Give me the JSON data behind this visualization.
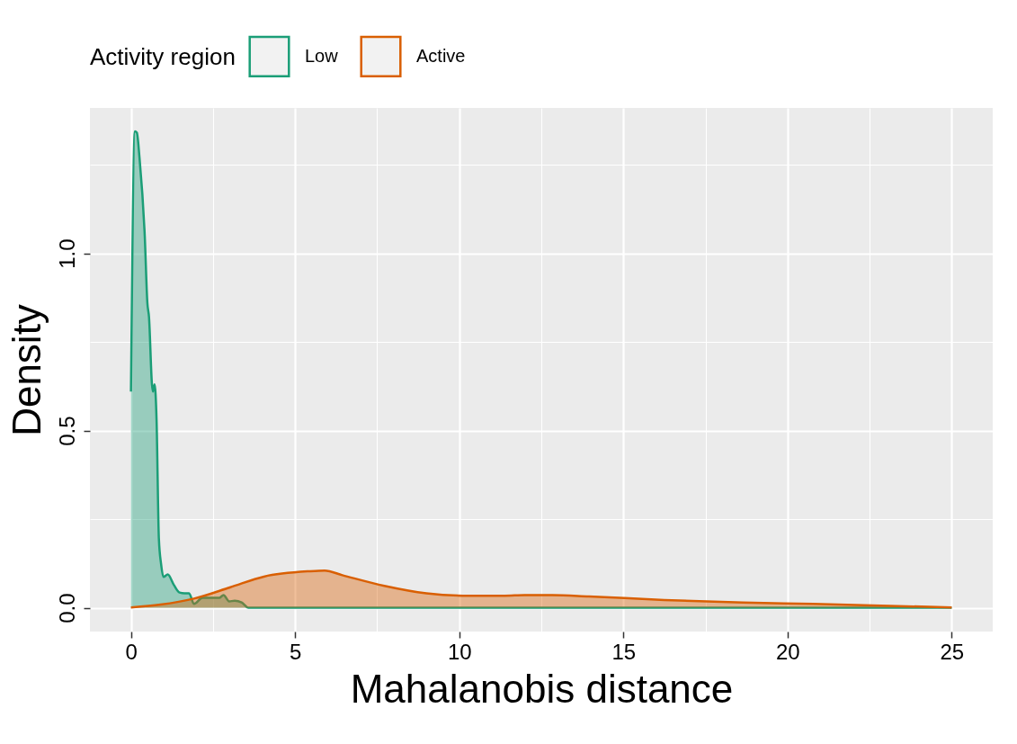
{
  "chart_data": {
    "type": "area",
    "xlabel": "Mahalanobis distance",
    "ylabel": "Density",
    "legend_title": "Activity region",
    "legend": "top left",
    "grid": true,
    "xlim": [
      -1.25,
      26.25
    ],
    "xticks": [
      0,
      5,
      10,
      15,
      20,
      25
    ],
    "ylim": [
      -0.067,
      1.41
    ],
    "yticks": [
      {
        "value": 0,
        "label": "0.0"
      },
      {
        "value": 0.5,
        "label": "0.5"
      },
      {
        "value": 1,
        "label": "1.0"
      }
    ],
    "series": [
      {
        "name": "Low",
        "color": "#1b9e77",
        "x": [
          0,
          0.12,
          0.18,
          0.26,
          0.42,
          0.5,
          0.55,
          0.64,
          0.67,
          0.72,
          0.78,
          0.85,
          0.92,
          0.99,
          1.12,
          1.31,
          1.48,
          1.63,
          1.77,
          1.92,
          2.18,
          2.52,
          2.69,
          2.82,
          2.99,
          3.16,
          3.37,
          3.58,
          4,
          25
        ],
        "values": [
          0.61,
          1.344,
          1.34,
          1.27,
          1.05,
          0.86,
          0.82,
          0.63,
          0.61,
          0.63,
          0.53,
          0.196,
          0.122,
          0.087,
          0.094,
          0.064,
          0.043,
          0.041,
          0.041,
          0.011,
          0.028,
          0.028,
          0.028,
          0.036,
          0.018,
          0.02,
          0.015,
          0,
          0,
          0
        ]
      },
      {
        "name": "Active",
        "color": "#d95f02",
        "x": [
          0,
          0.9,
          1.92,
          3.03,
          4.05,
          5.42,
          5.9,
          6.44,
          7.72,
          9.0,
          10.28,
          11.39,
          11.98,
          12.84,
          13.95,
          16.25,
          18.64,
          20.78,
          25
        ],
        "values": [
          0.001,
          0.009,
          0.026,
          0.058,
          0.088,
          0.103,
          0.105,
          0.092,
          0.062,
          0.041,
          0.034,
          0.034,
          0.036,
          0.036,
          0.032,
          0.022,
          0.015,
          0.011,
          0.001
        ]
      }
    ]
  }
}
